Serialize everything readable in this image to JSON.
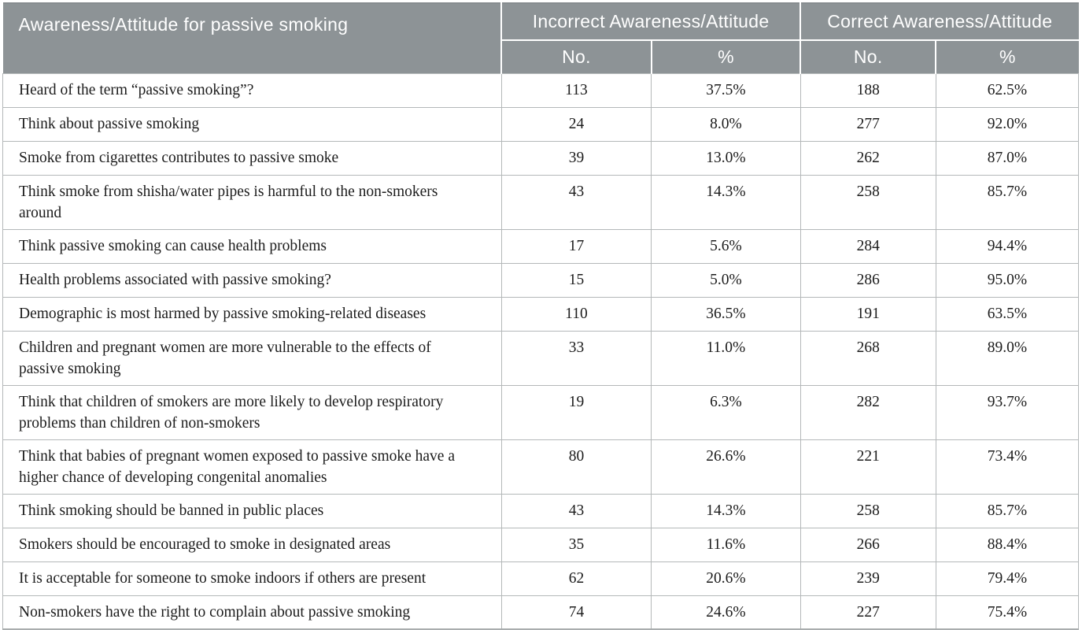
{
  "table": {
    "title_header": "Awareness/Attitude for passive smoking",
    "groups": [
      {
        "label": "Incorrect Awareness/Attitude"
      },
      {
        "label": "Correct Awareness/Attitude"
      }
    ],
    "subheaders": [
      "No.",
      "%",
      "No.",
      "%"
    ],
    "rows": [
      {
        "label": "Heard of the term “passive smoking”?",
        "cells": [
          "113",
          "37.5%",
          "188",
          "62.5%"
        ]
      },
      {
        "label": "Think about passive smoking",
        "cells": [
          "24",
          "8.0%",
          "277",
          "92.0%"
        ]
      },
      {
        "label": "Smoke from cigarettes contributes to passive smoke",
        "cells": [
          "39",
          "13.0%",
          "262",
          "87.0%"
        ]
      },
      {
        "label": "Think smoke from shisha/water pipes is harmful to the non-smokers around",
        "cells": [
          "43",
          "14.3%",
          "258",
          "85.7%"
        ]
      },
      {
        "label": "Think passive smoking can cause health problems",
        "cells": [
          "17",
          "5.6%",
          "284",
          "94.4%"
        ]
      },
      {
        "label": "Health problems associated with passive smoking?",
        "cells": [
          "15",
          "5.0%",
          "286",
          "95.0%"
        ]
      },
      {
        "label": "Demographic is most harmed by passive smoking-related diseases",
        "cells": [
          "110",
          "36.5%",
          "191",
          "63.5%"
        ]
      },
      {
        "label": "Children and pregnant women are more vulnerable to the effects of passive smoking",
        "cells": [
          "33",
          "11.0%",
          "268",
          "89.0%"
        ]
      },
      {
        "label": "Think that children of smokers are more likely to develop respiratory problems than children of non-smokers",
        "cells": [
          "19",
          "6.3%",
          "282",
          "93.7%"
        ]
      },
      {
        "label": "Think that babies of pregnant women exposed to passive smoke have a higher chance of developing congenital anomalies",
        "cells": [
          "80",
          "26.6%",
          "221",
          "73.4%"
        ]
      },
      {
        "label": "Think smoking should be banned in public places",
        "cells": [
          "43",
          "14.3%",
          "258",
          "85.7%"
        ]
      },
      {
        "label": "Smokers should be encouraged to smoke in designated areas",
        "cells": [
          "35",
          "11.6%",
          "266",
          "88.4%"
        ]
      },
      {
        "label": "It is acceptable for someone to smoke indoors if others are present",
        "cells": [
          "62",
          "20.6%",
          "239",
          "79.4%"
        ]
      },
      {
        "label": "Non-smokers have the right to complain about passive smoking",
        "cells": [
          "74",
          "24.6%",
          "227",
          "75.4%"
        ]
      }
    ]
  },
  "colors": {
    "header_bg": "#8d9396",
    "header_text": "#ffffff",
    "body_border": "#b4b8b9",
    "body_text": "#1c1c1c",
    "background": "#ffffff"
  }
}
